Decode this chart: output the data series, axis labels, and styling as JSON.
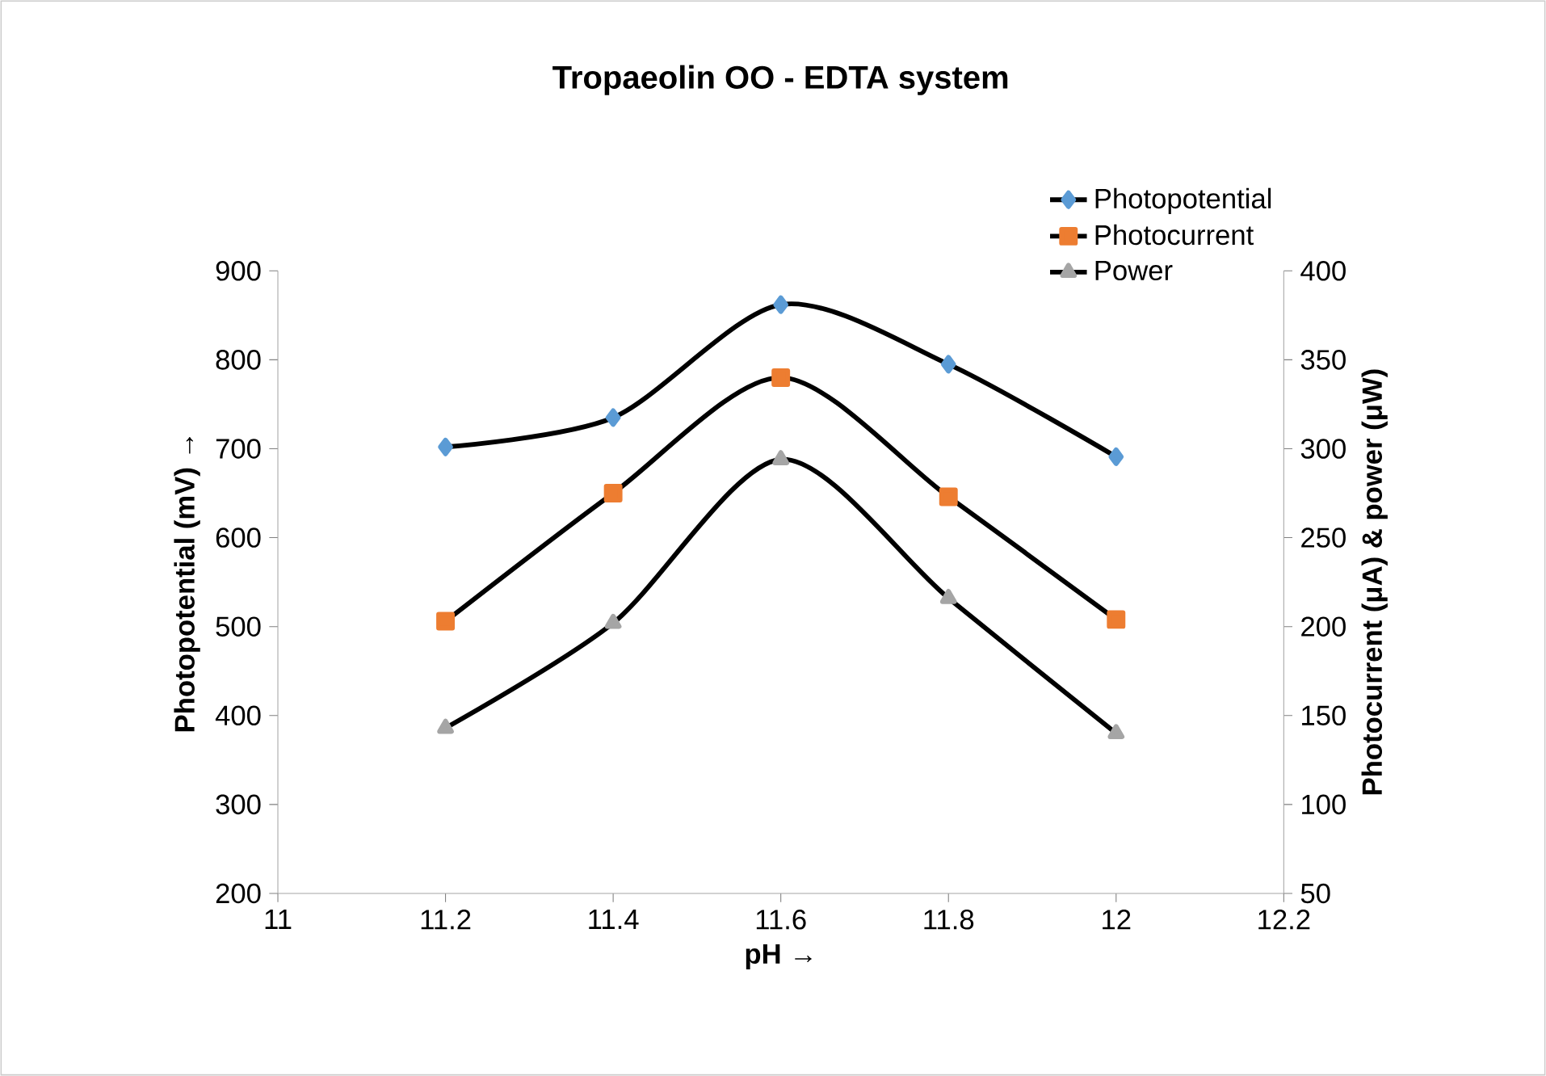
{
  "chart_data": {
    "type": "line",
    "title": "Tropaeolin OO - EDTA system",
    "xlabel": "pH →",
    "ylabel": "Photopotential (mV) →",
    "y2label": "Photocurrent (μA) & power (μW)",
    "x": [
      11.2,
      11.4,
      11.6,
      11.8,
      12
    ],
    "series": [
      {
        "name": "Photopotential",
        "color": "#5b9bd5",
        "marker": "diamond",
        "values": [
          702,
          735,
          862,
          795,
          691
        ]
      },
      {
        "name": "Photocurrent",
        "color": "#ed7d31",
        "marker": "square",
        "axis": "y2",
        "values": [
          203,
          275,
          340,
          273,
          204
        ]
      },
      {
        "name": "Power",
        "color": "#a5a5a5",
        "marker": "triangle",
        "axis": "y2",
        "values": [
          143,
          202,
          294,
          216,
          140
        ]
      }
    ],
    "xlim": [
      11,
      12.2
    ],
    "xticks": [
      11,
      11.2,
      11.4,
      11.6,
      11.8,
      12,
      12.2
    ],
    "ylim": [
      200,
      900
    ],
    "yticks": [
      200,
      300,
      400,
      500,
      600,
      700,
      800,
      900
    ],
    "y2lim": [
      50,
      400
    ],
    "y2ticks": [
      50,
      100,
      150,
      200,
      250,
      300,
      350,
      400
    ],
    "grid": false,
    "legend": "top right",
    "line_style": "solid"
  }
}
